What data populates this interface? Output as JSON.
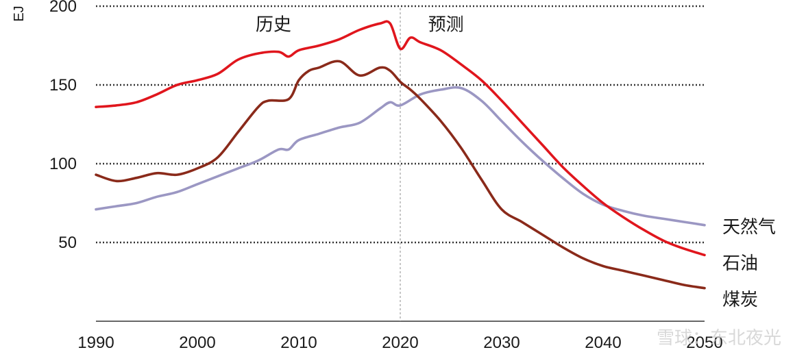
{
  "chart_data": {
    "type": "line",
    "ylabel": "EJ",
    "ylim": [
      0,
      200
    ],
    "xlim": [
      1990,
      2050
    ],
    "x_ticks": [
      1990,
      2000,
      2010,
      2020,
      2030,
      2040,
      2050
    ],
    "y_ticks": [
      50,
      100,
      150,
      200
    ],
    "grid": "horizontal-dotted",
    "divider_x": 2020,
    "annotations": [
      {
        "text": "历史",
        "x": 2007.5,
        "y": 188
      },
      {
        "text": "预测",
        "x": 2024.5,
        "y": 188
      }
    ],
    "series": [
      {
        "name": "石油",
        "color": "#e0161d",
        "x": [
          1990,
          1992,
          1994,
          1996,
          1998,
          2000,
          2002,
          2004,
          2006,
          2008,
          2009,
          2010,
          2012,
          2014,
          2016,
          2018,
          2019,
          2020,
          2021,
          2022,
          2024,
          2026,
          2028,
          2030,
          2032,
          2034,
          2036,
          2038,
          2040,
          2042,
          2044,
          2046,
          2048,
          2050
        ],
        "values": [
          136,
          137,
          139,
          144,
          150,
          153,
          157,
          166,
          170,
          171,
          168,
          172,
          175,
          179,
          185,
          189,
          189,
          173,
          180,
          177,
          172,
          163,
          153,
          140,
          126,
          112,
          98,
          86,
          75,
          66,
          58,
          51,
          46,
          42
        ]
      },
      {
        "name": "天然气",
        "color": "#9b97c3",
        "x": [
          1990,
          1992,
          1994,
          1996,
          1998,
          2000,
          2002,
          2004,
          2006,
          2008,
          2009,
          2010,
          2012,
          2014,
          2016,
          2018,
          2019,
          2020,
          2022,
          2024,
          2026,
          2028,
          2030,
          2032,
          2034,
          2036,
          2038,
          2040,
          2042,
          2044,
          2046,
          2048,
          2050
        ],
        "values": [
          71,
          73,
          75,
          79,
          82,
          87,
          92,
          97,
          102,
          109,
          109,
          115,
          119,
          123,
          126,
          135,
          139,
          137,
          144,
          147,
          148,
          140,
          127,
          114,
          102,
          91,
          81,
          74,
          70,
          67,
          65,
          63,
          61
        ]
      },
      {
        "name": "煤炭",
        "color": "#8a2a1a",
        "x": [
          1990,
          1992,
          1994,
          1996,
          1998,
          2000,
          2002,
          2004,
          2006,
          2007,
          2009,
          2010,
          2011,
          2012,
          2014,
          2016,
          2018,
          2019,
          2020,
          2021,
          2022,
          2024,
          2026,
          2028,
          2030,
          2032,
          2034,
          2036,
          2038,
          2040,
          2042,
          2044,
          2046,
          2048,
          2050
        ],
        "values": [
          93,
          89,
          91,
          94,
          93,
          97,
          104,
          120,
          136,
          140,
          141,
          153,
          159,
          161,
          165,
          156,
          161,
          159,
          152,
          147,
          141,
          127,
          110,
          90,
          71,
          63,
          55,
          47,
          40,
          35,
          32,
          29,
          26,
          23,
          21
        ]
      }
    ]
  },
  "watermark": "雪球：东北夜光"
}
